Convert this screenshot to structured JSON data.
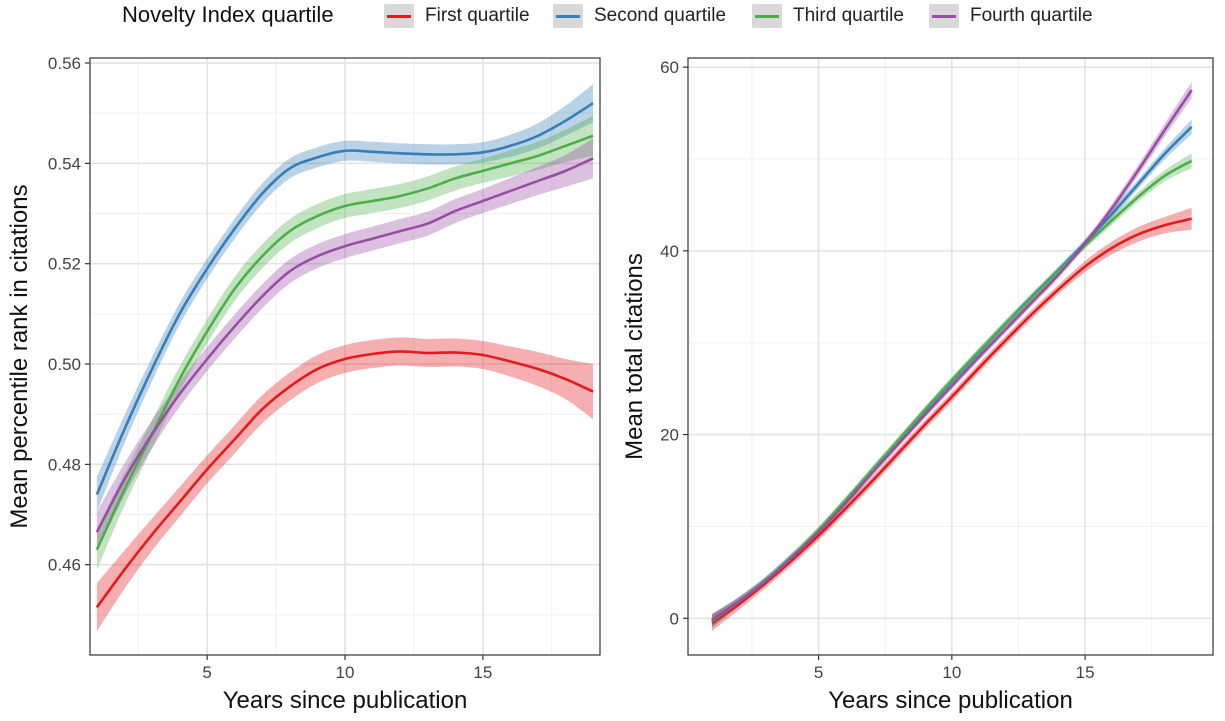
{
  "legend": {
    "title": "Novelty Index quartile",
    "items": [
      {
        "label": "First quartile",
        "color": "#e41a1c"
      },
      {
        "label": "Second quartile",
        "color": "#377eb8"
      },
      {
        "label": "Third quartile",
        "color": "#4daf4a"
      },
      {
        "label": "Fourth quartile",
        "color": "#984ea3"
      }
    ]
  },
  "chart_data": [
    {
      "type": "line",
      "title": "",
      "xlabel": "Years since publication",
      "ylabel": "Mean percentile rank in citations",
      "xlim": [
        0.75,
        19.25
      ],
      "ylim": [
        0.442,
        0.561
      ],
      "x_ticks": [
        5,
        10,
        15
      ],
      "y_ticks": [
        0.46,
        0.48,
        0.5,
        0.52,
        0.54,
        0.56
      ],
      "y_tick_labels": [
        "0.46",
        "0.48",
        "0.50",
        "0.52",
        "0.54",
        "0.56"
      ],
      "grid": true,
      "series": [
        {
          "name": "First quartile",
          "color": "#e41a1c",
          "x": [
            1,
            2,
            3,
            4,
            5,
            6,
            7,
            8,
            9,
            10,
            11,
            12,
            13,
            14,
            15,
            16,
            17,
            18,
            19
          ],
          "y": [
            0.4515,
            0.459,
            0.466,
            0.4725,
            0.479,
            0.485,
            0.491,
            0.4955,
            0.499,
            0.501,
            0.502,
            0.5025,
            0.5022,
            0.5023,
            0.5018,
            0.5005,
            0.499,
            0.497,
            0.4945
          ],
          "band": [
            0.0048,
            0.0038,
            0.0032,
            0.003,
            0.0028,
            0.0028,
            0.0028,
            0.0028,
            0.0028,
            0.0028,
            0.0028,
            0.0028,
            0.0028,
            0.0028,
            0.0028,
            0.003,
            0.0034,
            0.004,
            0.0055
          ]
        },
        {
          "name": "Second quartile",
          "color": "#377eb8",
          "x": [
            1,
            2,
            3,
            4,
            5,
            6,
            7,
            8,
            9,
            10,
            11,
            12,
            13,
            14,
            15,
            16,
            17,
            18,
            19
          ],
          "y": [
            0.474,
            0.487,
            0.499,
            0.51,
            0.519,
            0.527,
            0.534,
            0.539,
            0.5412,
            0.5425,
            0.5423,
            0.542,
            0.5418,
            0.5418,
            0.5422,
            0.5435,
            0.5455,
            0.5485,
            0.552
          ],
          "band": [
            0.0035,
            0.0028,
            0.0024,
            0.0022,
            0.002,
            0.002,
            0.002,
            0.002,
            0.002,
            0.002,
            0.002,
            0.002,
            0.002,
            0.002,
            0.002,
            0.0022,
            0.0025,
            0.003,
            0.0038
          ]
        },
        {
          "name": "Third quartile",
          "color": "#4daf4a",
          "x": [
            1,
            2,
            3,
            4,
            5,
            6,
            7,
            8,
            9,
            10,
            11,
            12,
            13,
            14,
            15,
            16,
            17,
            18,
            19
          ],
          "y": [
            0.463,
            0.475,
            0.486,
            0.497,
            0.5065,
            0.515,
            0.5215,
            0.5265,
            0.5295,
            0.5315,
            0.5325,
            0.5335,
            0.535,
            0.537,
            0.5385,
            0.54,
            0.5415,
            0.5435,
            0.5455
          ],
          "band": [
            0.004,
            0.0032,
            0.0028,
            0.0025,
            0.0024,
            0.0024,
            0.0024,
            0.0024,
            0.0024,
            0.0024,
            0.0024,
            0.0024,
            0.0024,
            0.0024,
            0.0024,
            0.0026,
            0.0028,
            0.0032,
            0.004
          ]
        },
        {
          "name": "Fourth quartile",
          "color": "#984ea3",
          "x": [
            1,
            2,
            3,
            4,
            5,
            6,
            7,
            8,
            9,
            10,
            11,
            12,
            13,
            14,
            15,
            16,
            17,
            18,
            19
          ],
          "y": [
            0.4665,
            0.477,
            0.486,
            0.494,
            0.501,
            0.5075,
            0.5135,
            0.5185,
            0.5215,
            0.5235,
            0.525,
            0.5265,
            0.528,
            0.5305,
            0.5325,
            0.5345,
            0.5365,
            0.5385,
            0.541
          ],
          "band": [
            0.004,
            0.0032,
            0.0028,
            0.0025,
            0.0024,
            0.0024,
            0.0024,
            0.0024,
            0.0024,
            0.0024,
            0.0024,
            0.0024,
            0.0024,
            0.0024,
            0.0024,
            0.0026,
            0.0028,
            0.0032,
            0.004
          ]
        }
      ]
    },
    {
      "type": "line",
      "title": "",
      "xlabel": "Years since publication",
      "ylabel": "Mean total citations",
      "xlim": [
        0.1,
        19.8
      ],
      "ylim": [
        -4,
        61
      ],
      "x_ticks": [
        5,
        10,
        15
      ],
      "y_ticks": [
        0,
        20,
        40,
        60
      ],
      "y_tick_labels": [
        "0",
        "20",
        "40",
        "60"
      ],
      "grid": true,
      "series": [
        {
          "name": "First quartile",
          "color": "#e41a1c",
          "x": [
            1,
            2,
            3,
            4,
            5,
            6,
            7,
            8,
            9,
            10,
            11,
            12,
            13,
            14,
            15,
            16,
            17,
            18,
            19
          ],
          "y": [
            -0.5,
            1.5,
            3.8,
            6.3,
            9.0,
            11.9,
            14.9,
            18.0,
            21.1,
            24.1,
            27.2,
            30.2,
            33.1,
            35.8,
            38.3,
            40.3,
            41.8,
            42.8,
            43.5
          ],
          "band": [
            0.9,
            0.6,
            0.5,
            0.5,
            0.5,
            0.5,
            0.5,
            0.5,
            0.5,
            0.5,
            0.5,
            0.5,
            0.5,
            0.5,
            0.6,
            0.7,
            0.8,
            0.9,
            1.2
          ]
        },
        {
          "name": "Second quartile",
          "color": "#377eb8",
          "x": [
            1,
            2,
            3,
            4,
            5,
            6,
            7,
            8,
            9,
            10,
            11,
            12,
            13,
            14,
            15,
            16,
            17,
            18,
            19
          ],
          "y": [
            -0.3,
            1.8,
            4.1,
            6.7,
            9.5,
            12.7,
            16.0,
            19.3,
            22.6,
            25.8,
            28.9,
            32.0,
            35.0,
            37.9,
            40.9,
            44.0,
            47.3,
            50.6,
            53.5
          ],
          "band": [
            0.7,
            0.5,
            0.4,
            0.4,
            0.4,
            0.4,
            0.4,
            0.4,
            0.4,
            0.4,
            0.4,
            0.4,
            0.4,
            0.4,
            0.4,
            0.5,
            0.5,
            0.6,
            0.8
          ]
        },
        {
          "name": "Third quartile",
          "color": "#4daf4a",
          "x": [
            1,
            2,
            3,
            4,
            5,
            6,
            7,
            8,
            9,
            10,
            11,
            12,
            13,
            14,
            15,
            16,
            17,
            18,
            19
          ],
          "y": [
            -0.3,
            1.8,
            4.1,
            6.7,
            9.6,
            12.8,
            16.1,
            19.4,
            22.7,
            25.9,
            29.0,
            32.0,
            34.9,
            37.8,
            40.6,
            43.3,
            45.9,
            48.2,
            49.8
          ],
          "band": [
            0.7,
            0.5,
            0.4,
            0.4,
            0.4,
            0.4,
            0.4,
            0.4,
            0.4,
            0.4,
            0.4,
            0.4,
            0.4,
            0.4,
            0.4,
            0.5,
            0.5,
            0.6,
            0.8
          ]
        },
        {
          "name": "Fourth quartile",
          "color": "#984ea3",
          "x": [
            1,
            2,
            3,
            4,
            5,
            6,
            7,
            8,
            9,
            10,
            11,
            12,
            13,
            14,
            15,
            16,
            17,
            18,
            19
          ],
          "y": [
            -0.2,
            1.8,
            4.0,
            6.6,
            9.4,
            12.5,
            15.8,
            19.0,
            22.2,
            25.3,
            28.4,
            31.4,
            34.4,
            37.4,
            40.8,
            44.6,
            48.8,
            53.2,
            57.5
          ],
          "band": [
            0.7,
            0.5,
            0.4,
            0.4,
            0.4,
            0.4,
            0.4,
            0.4,
            0.4,
            0.4,
            0.4,
            0.4,
            0.4,
            0.4,
            0.4,
            0.5,
            0.6,
            0.7,
            0.9
          ]
        }
      ]
    }
  ]
}
